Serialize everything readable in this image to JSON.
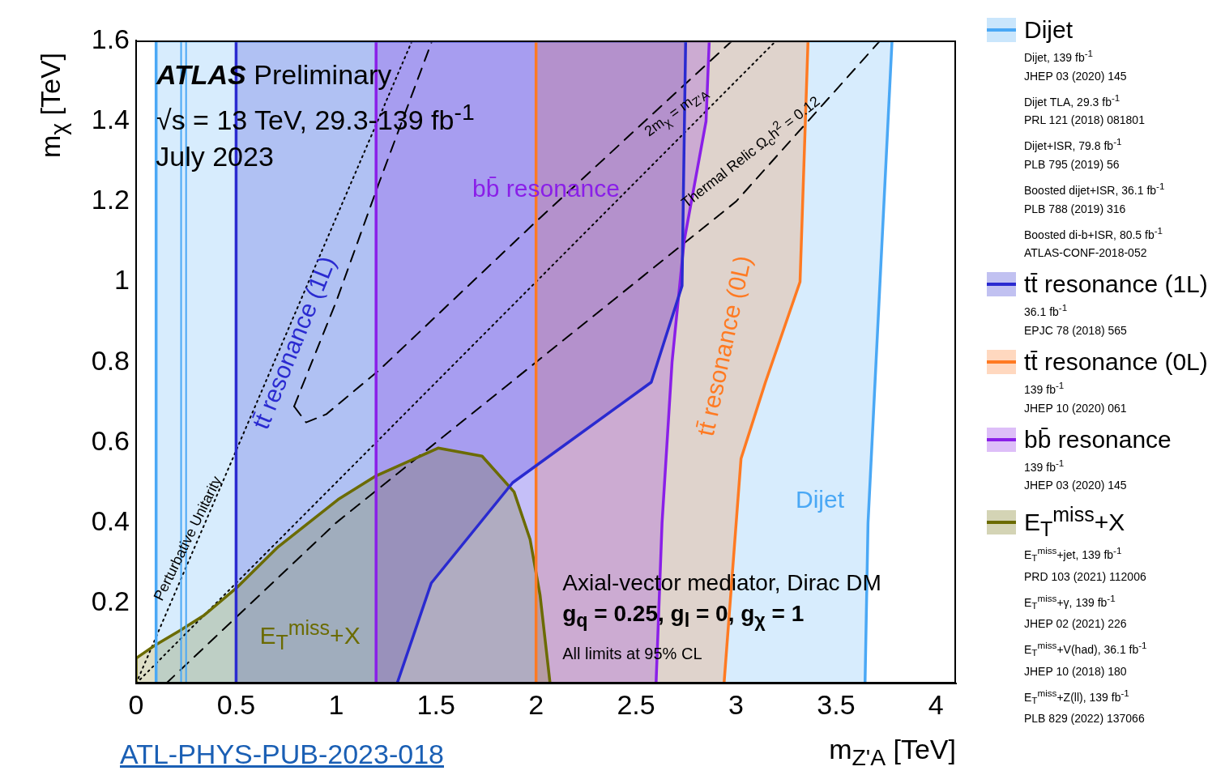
{
  "chart_data": {
    "type": "area",
    "title": "ATLAS Preliminary",
    "subtitle": "√s = 13 TeV, 29.3-139 fb$^{-1}$",
    "xlabel": "m$_{Z'A}$ [TeV]",
    "ylabel": "m$_{χ}$ [TeV]",
    "xlim": [
      0,
      4.1
    ],
    "ylim": [
      0,
      1.6
    ],
    "xticks": [
      0,
      0.5,
      1,
      1.5,
      2,
      2.5,
      3,
      3.5,
      4
    ],
    "yticks": [
      0.2,
      0.4,
      0.6,
      0.8,
      1,
      1.2,
      1.4,
      1.6
    ],
    "legend": "right",
    "series": [
      {
        "name": "Dijet",
        "color": "#4aa8f5",
        "x": [
          0.1,
          0.1,
          3.78,
          3.74,
          3.7,
          3.66,
          3.645,
          0.1
        ],
        "values": [
          0,
          1.6,
          1.6,
          1.2,
          0.8,
          0.4,
          0,
          0
        ]
      },
      {
        "type": "line",
        "color": "#4aa8f5",
        "x": [
          0.225,
          0.225
        ],
        "values": [
          0,
          1.6
        ]
      },
      {
        "type": "line",
        "color": "#4aa8f5",
        "x": [
          0.25,
          0.25
        ],
        "values": [
          0,
          1.6
        ]
      },
      {
        "name": "tt̄ resonance (1L)",
        "color": "#2a2ad0",
        "x": [
          0.5,
          0.5,
          2.748,
          2.73,
          2.576,
          1.883,
          1.476,
          1.305,
          0.5
        ],
        "values": [
          0,
          1.6,
          1.6,
          0.99,
          0.75,
          0.5,
          0.25,
          0,
          0
        ]
      },
      {
        "name": "tt̄ resonance (0L)",
        "color": "#ff7a22",
        "x": [
          2.0,
          2.0,
          3.36,
          3.32,
          3.147,
          3.025,
          2.99,
          2.94,
          2.0
        ],
        "values": [
          0,
          1.6,
          1.6,
          1.0,
          0.75,
          0.56,
          0.33,
          0,
          0
        ]
      },
      {
        "name": "bb̄ resonance",
        "color": "#8a1fe8",
        "x": [
          1.2,
          1.2,
          2.866,
          2.85,
          2.74,
          2.68,
          2.63,
          2.6,
          1.2
        ],
        "values": [
          0,
          1.6,
          1.6,
          1.4,
          1.1,
          0.8,
          0.4,
          0,
          0
        ]
      },
      {
        "name": "E$_{T}$$^{miss}$+X",
        "color": "#6b6b00",
        "x": [
          0,
          0,
          0.1,
          0.22,
          0.34,
          0.5,
          0.71,
          1.01,
          1.2,
          1.51,
          1.73,
          1.89,
          1.97,
          2.02,
          2.07,
          0
        ],
        "values": [
          0,
          0.063,
          0.097,
          0.132,
          0.17,
          0.237,
          0.34,
          0.458,
          0.517,
          0.586,
          0.566,
          0.477,
          0.359,
          0.22,
          0,
          0
        ]
      },
      {
        "type": "line",
        "line_style": "dotted",
        "color": "#000000",
        "x": [
          0,
          1.38
        ],
        "values": [
          0,
          1.6
        ]
      },
      {
        "type": "line",
        "line_style": "dotted",
        "color": "#000000",
        "x": [
          0,
          3.2
        ],
        "values": [
          0,
          1.6
        ]
      },
      {
        "type": "line",
        "line_style": "dashed",
        "color": "#000000",
        "x": [
          0.79,
          1.0,
          1.21,
          1.48
        ],
        "values": [
          0.69,
          0.95,
          1.24,
          1.6
        ]
      },
      {
        "type": "line",
        "line_style": "dashed",
        "color": "#000000",
        "x": [
          0.79,
          0.85,
          0.95,
          1.215,
          2.0,
          2.98
        ],
        "values": [
          0.69,
          0.65,
          0.67,
          0.78,
          1.15,
          1.6
        ]
      },
      {
        "type": "line",
        "line_style": "dashed",
        "color": "#000000",
        "x": [
          0.15,
          1.0,
          2.0,
          3.0,
          3.72
        ],
        "values": [
          0,
          0.4,
          0.8,
          1.2,
          1.6
        ]
      }
    ],
    "annotations": [
      "July 2023",
      "bb̄ resonance",
      "tt̄ resonance (1L)",
      "tt̄ resonance (0L)",
      "Dijet",
      "E$_{T}$$^{miss}$+X",
      "Axial-vector mediator, Dirac DM",
      "g$_{q}$ = 0.25, g$_{l}$ = 0, g$_{χ}$ = 1",
      "All limits at 95% CL",
      "Perturbative Unitarity",
      "2m$_{χ}$ = m$_{Z'A}$",
      "Thermal Relic Ω$_{c}$h$^{2}$ = 0.12",
      "Dijet, 139 fb$^{-1}$",
      "JHEP 03 (2020) 145",
      "Dijet TLA, 29.3 fb$^{-1}$",
      "PRL 121 (2018) 081801",
      "Dijet+ISR, 79.8 fb$^{-1}$",
      "PLB 795 (2019) 56",
      "Boosted dijet+ISR, 36.1 fb$^{-1}$",
      "PLB 788 (2019) 316",
      "Boosted di-b+ISR, 80.5 fb$^{-1}$",
      "ATLAS-CONF-2018-052",
      "36.1 fb$^{-1}$",
      "EPJC 78 (2018) 565",
      "139 fb$^{-1}$",
      "JHEP 10 (2020) 061",
      "139 fb$^{-1}$",
      "JHEP 03 (2020) 145",
      "E$_{T}$$^{miss}$+jet, 139 fb$^{-1}$",
      "PRD 103 (2021) 112006",
      "E$_{T}$$^{miss}$+γ, 139 fb$^{-1}$",
      "JHEP 02 (2021) 226",
      "E$_{T}$$^{miss}$+V(had), 36.1 fb$^{-1}$",
      "JHEP 10 (2018) 180",
      "E$_{T}$$^{miss}$+Z(ll), 139 fb$^{-1}$",
      "PLB 829 (2022) 137066",
      "ATL-PHYS-PUB-2023-018"
    ]
  }
}
